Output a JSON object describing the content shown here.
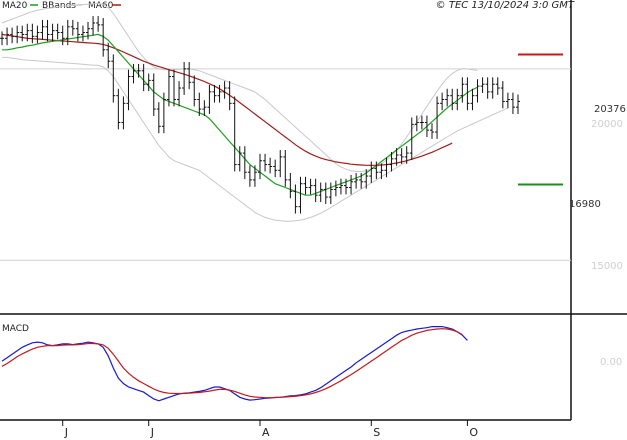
{
  "copyright": "© TEC 13/10/2024 3:0 GMT",
  "colors": {
    "price": "#111111",
    "ma20": "#1f9e1f",
    "ma60": "#a21c1c",
    "bbands": "#c8c8c8",
    "grid": "#d0d0d0",
    "resistance": "#c41a1a",
    "support": "#1a8f1a",
    "macd": "#1a1acc",
    "signal": "#c41a1a",
    "frame": "#111111",
    "axis_text": "#cfcfcf"
  },
  "legend": {
    "ma20": "MA20",
    "bbands": "BBands",
    "ma60": "MA60"
  },
  "macd_panel": {
    "title": "MACD"
  },
  "chart_data": {
    "type": "line",
    "title": "",
    "y_ticks": [
      "20000",
      "15000"
    ],
    "ylim": [
      13700,
      21800
    ],
    "levels": {
      "resistance": {
        "value": 20376,
        "label": "20376"
      },
      "support": {
        "value": 16980,
        "label": "16980"
      }
    },
    "months": [
      {
        "label": "J",
        "day": 12
      },
      {
        "label": "J",
        "day": 29
      },
      {
        "label": "A",
        "day": 51
      },
      {
        "label": "S",
        "day": 73
      },
      {
        "label": "O",
        "day": 92
      }
    ],
    "series": [
      {
        "name": "Price",
        "style": "ohlc",
        "values": [
          20800,
          20900,
          20850,
          20950,
          20900,
          21000,
          20850,
          20950,
          21100,
          20900,
          21000,
          20950,
          20800,
          21100,
          21050,
          20900,
          20950,
          21050,
          21200,
          21150,
          20500,
          20200,
          19300,
          18600,
          19100,
          19800,
          19950,
          19950,
          19600,
          19700,
          18950,
          18500,
          19200,
          19800,
          19200,
          19500,
          20000,
          19650,
          19200,
          18950,
          19000,
          19400,
          19300,
          19400,
          19500,
          19100,
          17500,
          17800,
          17300,
          17100,
          17300,
          17600,
          17500,
          17450,
          17350,
          17700,
          17100,
          16800,
          16400,
          17000,
          16900,
          16950,
          16700,
          16850,
          16650,
          16850,
          16900,
          16950,
          16900,
          17050,
          17100,
          17050,
          17200,
          17400,
          17300,
          17350,
          17500,
          17650,
          17750,
          17700,
          17800,
          18550,
          18600,
          18600,
          18400,
          18350,
          19100,
          19200,
          19300,
          19100,
          19300,
          19600,
          19100,
          19300,
          19550,
          19600,
          19400,
          19600,
          19500,
          19150,
          19200,
          19000,
          19150
        ]
      },
      {
        "name": "MA20",
        "values": [
          20500,
          20500,
          20520,
          20550,
          20570,
          20600,
          20620,
          20650,
          20680,
          20700,
          20720,
          20740,
          20760,
          20780,
          20800,
          20820,
          20840,
          20860,
          20880,
          20900,
          20850,
          20750,
          20600,
          20450,
          20300,
          20150,
          20000,
          19850,
          19700,
          19550,
          19400,
          19300,
          19200,
          19150,
          19100,
          19050,
          19000,
          18950,
          18900,
          18850,
          18800,
          18700,
          18550,
          18400,
          18250,
          18100,
          17950,
          17800,
          17650,
          17500,
          17400,
          17300,
          17200,
          17100,
          17000,
          16950,
          16900,
          16850,
          16800,
          16750,
          16700,
          16700,
          16750,
          16800,
          16850,
          16900,
          16950,
          17000,
          17050,
          17100,
          17150,
          17200,
          17280,
          17380,
          17480,
          17580,
          17680,
          17780,
          17880,
          17980,
          18080,
          18180,
          18280,
          18380,
          18500,
          18620,
          18740,
          18860,
          18980,
          19080,
          19180,
          19280,
          19380,
          19460,
          19520
        ]
      },
      {
        "name": "MA60",
        "values": [
          20900,
          20880,
          20860,
          20840,
          20820,
          20800,
          20790,
          20780,
          20770,
          20760,
          20750,
          20740,
          20730,
          20720,
          20710,
          20700,
          20690,
          20680,
          20670,
          20660,
          20640,
          20600,
          20550,
          20500,
          20440,
          20380,
          20320,
          20260,
          20200,
          20150,
          20100,
          20060,
          20020,
          19980,
          19940,
          19900,
          19860,
          19820,
          19770,
          19720,
          19670,
          19610,
          19550,
          19480,
          19400,
          19310,
          19220,
          19120,
          19020,
          18920,
          18820,
          18720,
          18620,
          18520,
          18420,
          18320,
          18220,
          18120,
          18020,
          17930,
          17850,
          17780,
          17720,
          17670,
          17630,
          17600,
          17570,
          17550,
          17530,
          17510,
          17500,
          17490,
          17480,
          17480,
          17480,
          17490,
          17500,
          17520,
          17540,
          17570,
          17600,
          17640,
          17680,
          17720,
          17770,
          17820,
          17880,
          17940,
          18000,
          18060
        ]
      },
      {
        "name": "BBands Upper",
        "values": [
          21200,
          21250,
          21300,
          21350,
          21400,
          21450,
          21500,
          21530,
          21560,
          21580,
          21600,
          21620,
          21640,
          21650,
          21660,
          21670,
          21680,
          21690,
          21700,
          21720,
          21680,
          21600,
          21450,
          21250,
          21050,
          20850,
          20650,
          20450,
          20300,
          20150,
          20050,
          20000,
          19980,
          19980,
          19980,
          19990,
          20000,
          20000,
          19980,
          19950,
          19900,
          19850,
          19800,
          19750,
          19700,
          19650,
          19600,
          19550,
          19500,
          19450,
          19400,
          19300,
          19200,
          19080,
          18960,
          18840,
          18720,
          18600,
          18480,
          18360,
          18240,
          18120,
          18000,
          17880,
          17760,
          17640,
          17520,
          17440,
          17380,
          17340,
          17320,
          17320,
          17340,
          17380,
          17440,
          17520,
          17620,
          17740,
          17880,
          18040,
          18220,
          18420,
          18620,
          18820,
          19020,
          19220,
          19420,
          19600,
          19760,
          19880,
          19960,
          20000,
          20000,
          19980,
          19960
        ]
      },
      {
        "name": "BBands Lower",
        "values": [
          20300,
          20300,
          20280,
          20260,
          20240,
          20230,
          20220,
          20210,
          20200,
          20190,
          20180,
          20170,
          20160,
          20150,
          20140,
          20130,
          20120,
          20110,
          20100,
          20090,
          20050,
          19950,
          19800,
          19600,
          19400,
          19200,
          19000,
          18800,
          18600,
          18400,
          18200,
          18000,
          17850,
          17700,
          17600,
          17550,
          17500,
          17450,
          17400,
          17350,
          17250,
          17150,
          17050,
          16950,
          16850,
          16750,
          16650,
          16550,
          16450,
          16350,
          16250,
          16180,
          16120,
          16080,
          16050,
          16030,
          16020,
          16020,
          16030,
          16050,
          16080,
          16120,
          16170,
          16230,
          16300,
          16380,
          16460,
          16540,
          16620,
          16700,
          16780,
          16860,
          16940,
          17020,
          17100,
          17180,
          17260,
          17340,
          17420,
          17500,
          17580,
          17660,
          17740,
          17820,
          17900,
          17980,
          18060,
          18140,
          18220,
          18300,
          18380,
          18440,
          18500,
          18560,
          18620,
          18680,
          18740,
          18800,
          18860,
          18920,
          18980
        ]
      }
    ],
    "macd": {
      "type": "line",
      "ylabel": "",
      "tick": "0.00",
      "ylim": [
        -1.6,
        1.3
      ],
      "zero": 0,
      "series": [
        {
          "name": "MACD",
          "values": [
            0.05,
            0.15,
            0.25,
            0.35,
            0.45,
            0.52,
            0.58,
            0.6,
            0.58,
            0.52,
            0.5,
            0.52,
            0.55,
            0.55,
            0.53,
            0.55,
            0.57,
            0.6,
            0.58,
            0.55,
            0.45,
            0.2,
            -0.15,
            -0.45,
            -0.6,
            -0.7,
            -0.75,
            -0.8,
            -0.85,
            -0.95,
            -1.05,
            -1.1,
            -1.05,
            -1.0,
            -0.95,
            -0.9,
            -0.88,
            -0.87,
            -0.85,
            -0.83,
            -0.8,
            -0.75,
            -0.7,
            -0.7,
            -0.75,
            -0.8,
            -0.9,
            -1.0,
            -1.05,
            -1.08,
            -1.07,
            -1.05,
            -1.03,
            -1.02,
            -1.0,
            -1.0,
            -0.98,
            -0.96,
            -0.95,
            -0.93,
            -0.9,
            -0.85,
            -0.8,
            -0.72,
            -0.62,
            -0.52,
            -0.42,
            -0.32,
            -0.22,
            -0.12,
            0.0,
            0.1,
            0.2,
            0.3,
            0.4,
            0.5,
            0.6,
            0.7,
            0.8,
            0.88,
            0.92,
            0.95,
            0.98,
            1.0,
            1.02,
            1.05,
            1.05,
            1.05,
            1.02,
            0.98,
            0.9,
            0.8,
            0.65
          ]
        },
        {
          "name": "Signal",
          "values": [
            -0.1,
            -0.02,
            0.08,
            0.18,
            0.26,
            0.33,
            0.4,
            0.45,
            0.48,
            0.5,
            0.5,
            0.5,
            0.51,
            0.52,
            0.52,
            0.53,
            0.54,
            0.56,
            0.56,
            0.55,
            0.52,
            0.42,
            0.25,
            0.05,
            -0.15,
            -0.3,
            -0.42,
            -0.52,
            -0.6,
            -0.68,
            -0.76,
            -0.82,
            -0.86,
            -0.88,
            -0.89,
            -0.89,
            -0.89,
            -0.88,
            -0.87,
            -0.86,
            -0.84,
            -0.82,
            -0.79,
            -0.77,
            -0.77,
            -0.79,
            -0.83,
            -0.88,
            -0.93,
            -0.97,
            -0.99,
            -1.0,
            -1.01,
            -1.01,
            -1.01,
            -1.0,
            -0.99,
            -0.98,
            -0.97,
            -0.95,
            -0.93,
            -0.9,
            -0.86,
            -0.81,
            -0.75,
            -0.68,
            -0.6,
            -0.52,
            -0.43,
            -0.34,
            -0.25,
            -0.15,
            -0.05,
            0.05,
            0.15,
            0.25,
            0.35,
            0.45,
            0.55,
            0.65,
            0.72,
            0.8,
            0.86,
            0.9,
            0.94,
            0.96,
            0.98,
            0.99,
            0.98,
            0.95,
            0.9,
            0.82
          ]
        }
      ]
    }
  }
}
